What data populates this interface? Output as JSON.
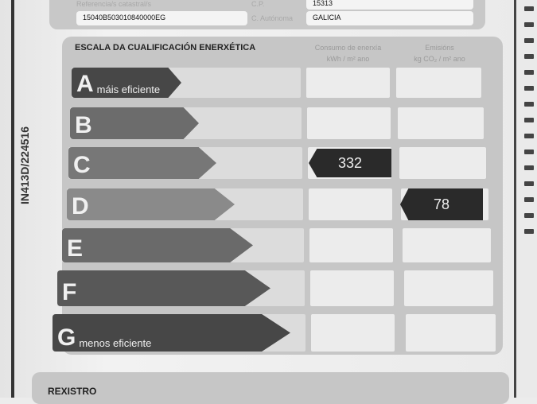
{
  "side_code": "IN413D/224516",
  "top": {
    "ref_label": "Referencia/s catastral/s",
    "ref_value": "15040B503010840000EG",
    "cp_label": "C.P.",
    "cp_value": "15313",
    "ca_label": "C. Autónoma",
    "ca_value": "GALICIA"
  },
  "scale": {
    "title": "ESCALA DA CUALIFICACIÓN ENERXÉTICA",
    "col_consumo": [
      "Consumo de enerxía",
      "kWh / m² ano"
    ],
    "col_emisions": [
      "Emisións",
      "kg CO₂ / m² ano"
    ],
    "rows": [
      {
        "letter": "A",
        "sub": "máis eficiente",
        "color": "#474747"
      },
      {
        "letter": "B",
        "sub": "",
        "color": "#6c6c6c"
      },
      {
        "letter": "C",
        "sub": "",
        "color": "#777777"
      },
      {
        "letter": "D",
        "sub": "",
        "color": "#8a8a8a"
      },
      {
        "letter": "E",
        "sub": "",
        "color": "#6a6a6a"
      },
      {
        "letter": "F",
        "sub": "",
        "color": "#585858"
      },
      {
        "letter": "G",
        "sub": "menos eficiente",
        "color": "#474747"
      }
    ],
    "consumo": {
      "value": "332",
      "rating": "C"
    },
    "emisions": {
      "value": "78",
      "rating": "D"
    }
  },
  "rexistro_label": "REXISTRO"
}
